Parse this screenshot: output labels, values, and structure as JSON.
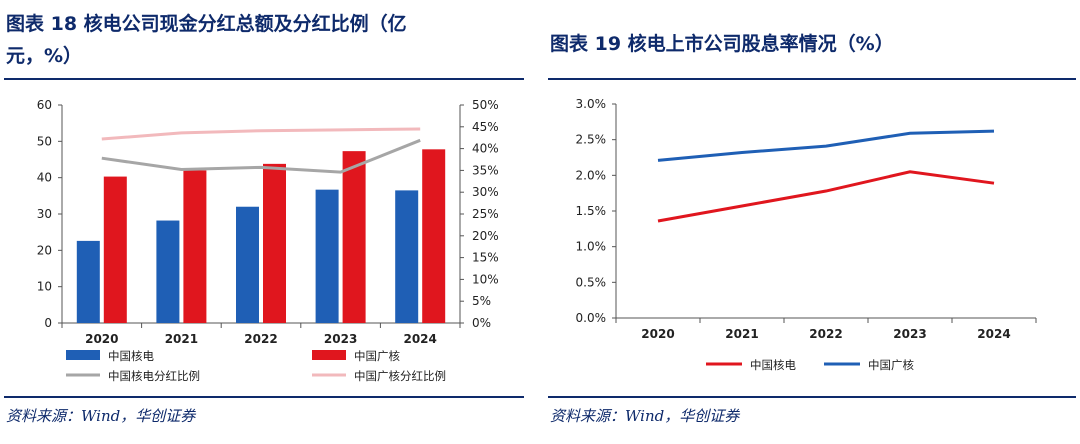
{
  "left": {
    "title_line1": "图表 18   核电公司现金分红总额及分红比例（亿",
    "title_line2": "元，%）",
    "source": "资料来源：Wind，华创证券",
    "chart_data": {
      "type": "bar",
      "categories": [
        "2020",
        "2021",
        "2022",
        "2023",
        "2024"
      ],
      "series": [
        {
          "name": "中国核电",
          "kind": "bar",
          "axis": "left",
          "color": "#1f5fb5",
          "values": [
            22.6,
            28.2,
            32.0,
            36.7,
            36.5
          ]
        },
        {
          "name": "中国广核",
          "kind": "bar",
          "axis": "left",
          "color": "#e0161e",
          "values": [
            40.3,
            42.0,
            43.8,
            47.3,
            47.8
          ]
        },
        {
          "name": "中国核电分红比例",
          "kind": "line",
          "axis": "right",
          "color": "#a6a6a6",
          "values": [
            37.8,
            35.2,
            35.7,
            34.6,
            41.9
          ]
        },
        {
          "name": "中国广核分红比例",
          "kind": "line",
          "axis": "right",
          "color": "#f2b9bc",
          "values": [
            42.2,
            43.6,
            44.1,
            44.3,
            44.5
          ]
        }
      ],
      "y_left": {
        "min": 0,
        "max": 60,
        "ticks": [
          "0",
          "10",
          "20",
          "30",
          "40",
          "50",
          "60"
        ]
      },
      "y_right": {
        "min": 0,
        "max": 50,
        "ticks": [
          "0%",
          "5%",
          "10%",
          "15%",
          "20%",
          "25%",
          "30%",
          "35%",
          "40%",
          "45%",
          "50%"
        ]
      },
      "grid": false
    }
  },
  "right": {
    "title": "图表 19   核电上市公司股息率情况（%）",
    "source": "资料来源：Wind，华创证券",
    "chart_data": {
      "type": "line",
      "categories": [
        "2020",
        "2021",
        "2022",
        "2023",
        "2024"
      ],
      "series": [
        {
          "name": "中国核电",
          "color": "#e0161e",
          "values": [
            1.36,
            1.57,
            1.78,
            2.05,
            1.89
          ]
        },
        {
          "name": "中国广核",
          "color": "#1f5fb5",
          "values": [
            2.21,
            2.32,
            2.41,
            2.59,
            2.62
          ]
        }
      ],
      "y": {
        "min": 0,
        "max": 3.0,
        "ticks": [
          "0.0%",
          "0.5%",
          "1.0%",
          "1.5%",
          "2.0%",
          "2.5%",
          "3.0%"
        ]
      },
      "grid": false
    }
  }
}
